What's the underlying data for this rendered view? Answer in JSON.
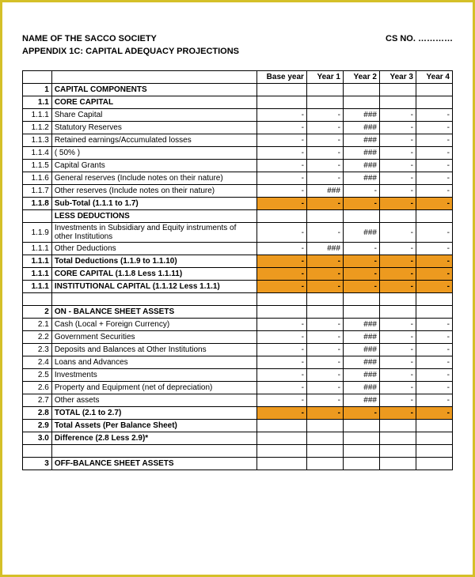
{
  "header": {
    "society": "NAME OF THE SACCO SOCIETY",
    "csno_label": "CS NO.",
    "csno_dots": "…………",
    "appendix": "APPENDIX 1C: CAPITAL ADEQUACY PROJECTIONS"
  },
  "columns": [
    "",
    "",
    "Base year",
    "Year 1",
    "Year 2",
    "Year 3",
    "Year 4"
  ],
  "rows": [
    {
      "num": "1",
      "desc": "CAPITAL COMPONENTS",
      "bold": true,
      "hl": false,
      "v": [
        "",
        "",
        "",
        "",
        ""
      ]
    },
    {
      "num": "1.1",
      "desc": "CORE CAPITAL",
      "bold": true,
      "hl": false,
      "v": [
        "",
        "",
        "",
        "",
        ""
      ]
    },
    {
      "num": "1.1.1",
      "desc": "Share Capital",
      "bold": false,
      "hl": false,
      "v": [
        "-",
        "-",
        "###",
        "-",
        "-"
      ]
    },
    {
      "num": "1.1.2",
      "desc": "Statutory Reserves",
      "bold": false,
      "hl": false,
      "v": [
        "-",
        "-",
        "###",
        "-",
        "-"
      ]
    },
    {
      "num": "1.1.3",
      "desc": "Retained earnings/Accumulated losses",
      "bold": false,
      "hl": false,
      "v": [
        "-",
        "-",
        "###",
        "-",
        "-"
      ]
    },
    {
      "num": "1.1.4",
      "desc": "( 50% )",
      "bold": false,
      "hl": false,
      "v": [
        "-",
        "-",
        "###",
        "-",
        "-"
      ]
    },
    {
      "num": "1.1.5",
      "desc": "Capital Grants",
      "bold": false,
      "hl": false,
      "v": [
        "-",
        "-",
        "###",
        "-",
        "-"
      ]
    },
    {
      "num": "1.1.6",
      "desc": "General reserves (Include notes on their nature)",
      "bold": false,
      "hl": false,
      "v": [
        "-",
        "-",
        "###",
        "-",
        "-"
      ]
    },
    {
      "num": "1.1.7",
      "desc": "Other reserves (Include notes on their nature)",
      "bold": false,
      "hl": false,
      "v": [
        "-",
        "###",
        "-",
        "-",
        "-"
      ]
    },
    {
      "num": "1.1.8",
      "desc": "Sub-Total (1.1.1 to 1.7)",
      "bold": true,
      "hl": true,
      "v": [
        "-",
        "-",
        "-",
        "-",
        "-"
      ]
    },
    {
      "num": "",
      "desc": "LESS DEDUCTIONS",
      "bold": true,
      "hl": false,
      "v": [
        "",
        "",
        "",
        "",
        ""
      ]
    },
    {
      "num": "1.1.9",
      "desc": "Investments in Subsidiary  and Equity instruments of other Institutions",
      "bold": false,
      "hl": false,
      "v": [
        "-",
        "-",
        "###",
        "-",
        "-"
      ]
    },
    {
      "num": "1.1.1",
      "desc": "Other Deductions",
      "bold": false,
      "hl": false,
      "v": [
        "-",
        "###",
        "-",
        "-",
        "-"
      ]
    },
    {
      "num": "1.1.1",
      "desc": "Total Deductions (1.1.9 to 1.1.10)",
      "bold": true,
      "hl": true,
      "v": [
        "-",
        "-",
        "-",
        "-",
        "-"
      ]
    },
    {
      "num": "1.1.1",
      "desc": "CORE CAPITAL (1.1.8 Less 1.1.11)",
      "bold": true,
      "hl": true,
      "v": [
        "-",
        "-",
        "-",
        "-",
        "-"
      ]
    },
    {
      "num": "1.1.1",
      "desc": "INSTITUTIONAL CAPITAL (1.1.12 Less 1.1.1)",
      "bold": true,
      "hl": true,
      "v": [
        "-",
        "-",
        "-",
        "-",
        "-"
      ]
    },
    {
      "num": "",
      "desc": "",
      "bold": false,
      "hl": false,
      "v": [
        "",
        "",
        "",
        "",
        ""
      ]
    },
    {
      "num": "2",
      "desc": "ON - BALANCE SHEET ASSETS",
      "bold": true,
      "hl": false,
      "v": [
        "",
        "",
        "",
        "",
        ""
      ]
    },
    {
      "num": "2.1",
      "desc": "  Cash (Local + Foreign Currency)",
      "bold": false,
      "hl": false,
      "v": [
        "-",
        "-",
        "###",
        "-",
        "-"
      ]
    },
    {
      "num": "2.2",
      "desc": "  Government Securities",
      "bold": false,
      "hl": false,
      "v": [
        "-",
        "-",
        "###",
        "-",
        "-"
      ]
    },
    {
      "num": "2.3",
      "desc": "  Deposits and Balances at Other Institutions",
      "bold": false,
      "hl": false,
      "v": [
        "-",
        "-",
        "###",
        "-",
        "-"
      ]
    },
    {
      "num": "2.4",
      "desc": "Loans and Advances",
      "bold": false,
      "hl": false,
      "v": [
        "-",
        "-",
        "###",
        "-",
        "-"
      ]
    },
    {
      "num": "2.5",
      "desc": "Investments",
      "bold": false,
      "hl": false,
      "v": [
        "-",
        "-",
        "###",
        "-",
        "-"
      ]
    },
    {
      "num": "2.6",
      "desc": "Property and Equipment (net of depreciation)",
      "bold": false,
      "hl": false,
      "v": [
        "-",
        "-",
        "###",
        "-",
        "-"
      ]
    },
    {
      "num": "2.7",
      "desc": "Other assets",
      "bold": false,
      "hl": false,
      "v": [
        "-",
        "-",
        "###",
        "-",
        "-"
      ]
    },
    {
      "num": "2.8",
      "desc": "  TOTAL (2.1 to 2.7)",
      "bold": true,
      "hl": true,
      "v": [
        "-",
        "-",
        "-",
        "-",
        "-"
      ]
    },
    {
      "num": "2.9",
      "desc": "Total Assets (Per Balance Sheet)",
      "bold": true,
      "hl": false,
      "v": [
        "",
        "",
        "",
        "",
        ""
      ]
    },
    {
      "num": "3.0",
      "desc": "  Difference (2.8 Less 2.9)*",
      "bold": true,
      "hl": false,
      "v": [
        "",
        "",
        "",
        "",
        ""
      ]
    },
    {
      "num": "",
      "desc": "",
      "bold": false,
      "hl": false,
      "v": [
        "",
        "",
        "",
        "",
        ""
      ]
    },
    {
      "num": "3",
      "desc": "OFF-BALANCE SHEET ASSETS",
      "bold": true,
      "hl": false,
      "v": [
        "",
        "",
        "",
        "",
        ""
      ]
    }
  ],
  "style": {
    "border_color": "#d4c028",
    "highlight_color": "#ed9a1f",
    "font_size_header": 11,
    "font_size_table": 10
  }
}
